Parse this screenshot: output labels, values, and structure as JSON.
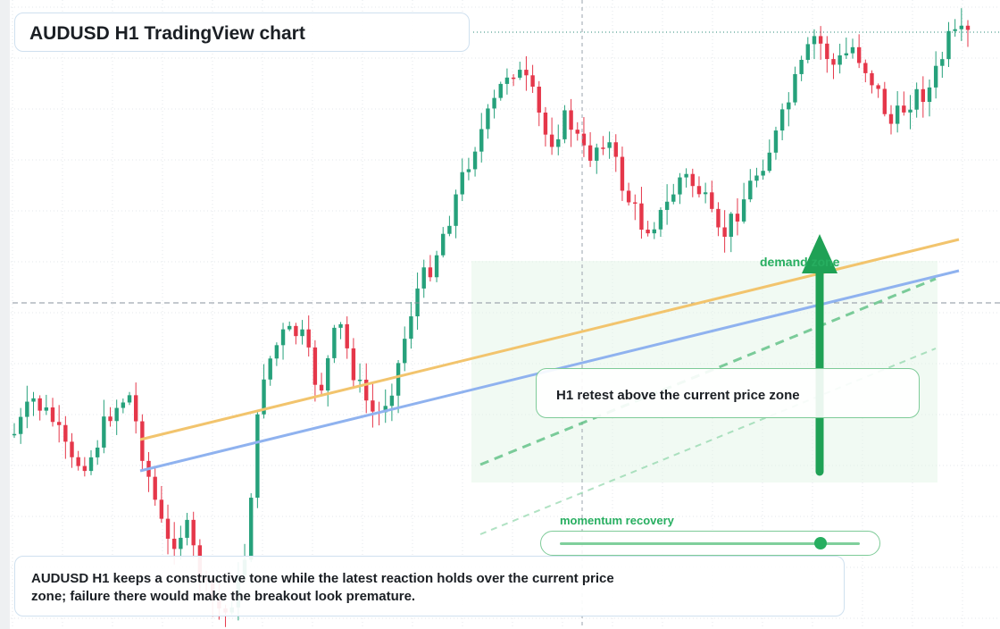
{
  "header": {
    "title": "AUDUSD H1 TradingView chart"
  },
  "annotations": {
    "zone_label": "demand zone",
    "callout": "H1 retest above the current price zone",
    "momentum_label": "momentum recovery",
    "momentum_level": 0.87,
    "summary": "AUDUSD H1 keeps a constructive tone while the latest reaction holds over the current price zone; failure there would make the breakout look premature."
  },
  "colors": {
    "up": "#26a17b",
    "down": "#e5374a",
    "trend_orange": "#f2c46d",
    "trend_blue": "#8fb2ef",
    "zone_green": "#27ae60",
    "arrow": "#1fa155"
  },
  "chart_data": {
    "type": "candlestick",
    "symbol": "AUDUSD",
    "timeframe": "H1",
    "title": "AUDUSD H1 TradingView chart",
    "grid": true,
    "y_scale": "price, unlabelled",
    "path": [
      486,
      448,
      470,
      520,
      512,
      462,
      440,
      530,
      610,
      590,
      660,
      690,
      640,
      420,
      376,
      372,
      440,
      360,
      430,
      470,
      420,
      330,
      290,
      230,
      168,
      125,
      72,
      98,
      160,
      130,
      178,
      150,
      215,
      255,
      240,
      195,
      215,
      270,
      232,
      190,
      150,
      90,
      40,
      75,
      52,
      90,
      140,
      110,
      100,
      45,
      40
    ],
    "candle_count": 150,
    "events": [
      {
        "type": "zone",
        "label": "demand zone"
      },
      {
        "type": "callout",
        "label": "H1 retest above the current price zone"
      },
      {
        "type": "trendline",
        "color": "orange"
      },
      {
        "type": "trendline",
        "color": "blue"
      },
      {
        "type": "arrow",
        "direction": "up"
      }
    ]
  }
}
